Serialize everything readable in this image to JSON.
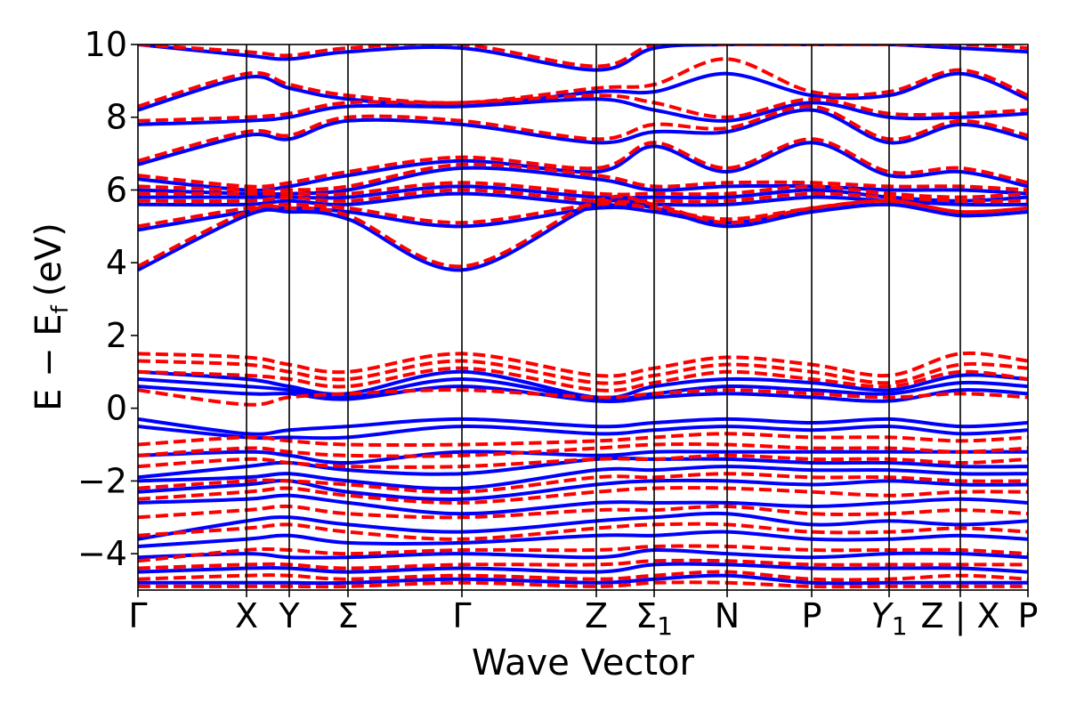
{
  "chart_data": {
    "type": "line",
    "xlabel": "Wave Vector",
    "ylabel": "E − E",
    "ylabel_sub": "f",
    "ylabel_unit": "(eV)",
    "ylim": [
      -5,
      10
    ],
    "yticks": [
      {
        "value": 10,
        "label": "10"
      },
      {
        "value": 8,
        "label": "8"
      },
      {
        "value": 6,
        "label": "6"
      },
      {
        "value": 4,
        "label": "4"
      },
      {
        "value": 2,
        "label": "2"
      },
      {
        "value": 0,
        "label": "0"
      },
      {
        "value": -2,
        "label": "−2"
      },
      {
        "value": -4,
        "label": "−4"
      }
    ],
    "grid": false,
    "legend": "none",
    "kpath": [
      {
        "x": 0.0,
        "label": "Γ",
        "sub": ""
      },
      {
        "x": 0.122,
        "label": "X",
        "sub": ""
      },
      {
        "x": 0.17,
        "label": "Y",
        "sub": ""
      },
      {
        "x": 0.236,
        "label": "Σ",
        "sub": ""
      },
      {
        "x": 0.364,
        "label": "Γ",
        "sub": ""
      },
      {
        "x": 0.515,
        "label": "Z",
        "sub": ""
      },
      {
        "x": 0.58,
        "label": "Σ",
        "sub": "1"
      },
      {
        "x": 0.662,
        "label": "N",
        "sub": ""
      },
      {
        "x": 0.757,
        "label": "P",
        "sub": ""
      },
      {
        "x": 0.844,
        "label": "Y",
        "sub": "1",
        "italic": true
      },
      {
        "x": 0.924,
        "label": "Z | X",
        "sub": ""
      },
      {
        "x": 1.0,
        "label": "P",
        "sub": ""
      }
    ],
    "series": [
      {
        "style": "solid",
        "color": "#0000ff",
        "bands": [
          [
            10.0,
            9.7,
            9.6,
            9.8,
            9.9,
            9.3,
            9.9,
            10.0,
            10.0,
            10.0,
            9.9,
            9.8
          ],
          [
            8.2,
            9.1,
            8.8,
            8.5,
            8.3,
            8.7,
            8.7,
            9.2,
            8.6,
            8.6,
            9.2,
            8.5
          ],
          [
            7.8,
            7.9,
            8.0,
            8.3,
            8.3,
            8.5,
            8.2,
            7.9,
            8.4,
            8.0,
            8.0,
            8.1
          ],
          [
            6.7,
            7.5,
            7.4,
            7.9,
            7.8,
            7.3,
            7.6,
            7.6,
            8.2,
            7.3,
            7.8,
            7.4
          ],
          [
            6.3,
            6.0,
            6.1,
            6.4,
            6.8,
            6.5,
            7.2,
            6.5,
            7.3,
            6.4,
            6.5,
            6.1
          ],
          [
            6.0,
            5.9,
            5.9,
            6.0,
            6.6,
            6.3,
            6.0,
            6.1,
            6.1,
            6.0,
            6.0,
            5.9
          ],
          [
            5.8,
            5.8,
            5.8,
            5.8,
            6.1,
            5.8,
            5.8,
            5.8,
            6.0,
            5.8,
            5.7,
            5.8
          ],
          [
            5.6,
            5.6,
            5.7,
            5.6,
            5.9,
            5.6,
            5.6,
            5.6,
            5.8,
            5.7,
            5.6,
            5.6
          ],
          [
            4.9,
            5.4,
            5.5,
            5.4,
            5.0,
            5.5,
            5.4,
            5.1,
            5.4,
            5.6,
            5.3,
            5.4
          ],
          [
            3.8,
            5.3,
            5.4,
            5.2,
            3.8,
            5.6,
            5.5,
            5.0,
            5.4,
            5.6,
            5.3,
            5.4
          ],
          [
            1.0,
            0.8,
            0.6,
            0.4,
            1.0,
            0.3,
            0.6,
            0.8,
            0.7,
            0.5,
            0.9,
            0.8
          ],
          [
            0.8,
            0.6,
            0.5,
            0.3,
            0.8,
            0.25,
            0.4,
            0.6,
            0.5,
            0.4,
            0.7,
            0.6
          ],
          [
            0.6,
            0.4,
            0.4,
            0.25,
            0.6,
            0.2,
            0.3,
            0.4,
            0.3,
            0.2,
            0.5,
            0.4
          ],
          [
            -0.3,
            -0.7,
            -0.6,
            -0.5,
            -0.3,
            -0.5,
            -0.4,
            -0.3,
            -0.4,
            -0.3,
            -0.5,
            -0.4
          ],
          [
            -0.5,
            -0.8,
            -0.8,
            -0.8,
            -0.5,
            -0.7,
            -0.6,
            -0.5,
            -0.6,
            -0.5,
            -0.7,
            -0.6
          ],
          [
            -1.3,
            -1.2,
            -1.3,
            -1.5,
            -1.2,
            -1.3,
            -1.2,
            -1.2,
            -1.2,
            -1.2,
            -1.2,
            -1.2
          ],
          [
            -1.9,
            -1.6,
            -1.5,
            -1.7,
            -1.8,
            -1.4,
            -1.4,
            -1.4,
            -1.5,
            -1.5,
            -1.6,
            -1.6
          ],
          [
            -2.0,
            -1.9,
            -1.8,
            -2.0,
            -2.2,
            -1.7,
            -1.7,
            -1.6,
            -1.7,
            -1.7,
            -1.8,
            -1.8
          ],
          [
            -2.3,
            -2.1,
            -2.0,
            -2.3,
            -2.5,
            -2.1,
            -2.0,
            -2.0,
            -2.1,
            -2.0,
            -2.1,
            -2.1
          ],
          [
            -2.6,
            -2.5,
            -2.4,
            -2.6,
            -2.9,
            -2.6,
            -2.6,
            -2.6,
            -2.7,
            -2.6,
            -2.5,
            -2.6
          ],
          [
            -3.6,
            -3.1,
            -3.0,
            -3.2,
            -3.4,
            -3.1,
            -3.0,
            -2.9,
            -3.2,
            -3.1,
            -3.2,
            -3.1
          ],
          [
            -3.8,
            -3.6,
            -3.5,
            -3.7,
            -3.7,
            -3.5,
            -3.5,
            -3.4,
            -3.6,
            -3.6,
            -3.5,
            -3.6
          ],
          [
            -4.1,
            -4.0,
            -4.1,
            -4.1,
            -4.0,
            -4.1,
            -3.9,
            -4.0,
            -4.1,
            -4.0,
            -4.0,
            -4.1
          ],
          [
            -4.5,
            -4.4,
            -4.4,
            -4.5,
            -4.4,
            -4.5,
            -4.3,
            -4.3,
            -4.4,
            -4.4,
            -4.4,
            -4.5
          ],
          [
            -4.8,
            -4.8,
            -4.8,
            -4.8,
            -4.7,
            -4.8,
            -4.7,
            -4.6,
            -4.8,
            -4.8,
            -4.8,
            -4.8
          ]
        ]
      },
      {
        "style": "dashed",
        "color": "#ff0000",
        "bands": [
          [
            10.0,
            9.8,
            9.7,
            9.9,
            10.0,
            9.4,
            10.0,
            10.0,
            10.0,
            10.0,
            10.0,
            9.9
          ],
          [
            8.3,
            9.2,
            8.9,
            8.6,
            8.4,
            8.8,
            8.9,
            9.6,
            8.7,
            8.7,
            9.3,
            8.6
          ],
          [
            7.9,
            8.0,
            8.1,
            8.4,
            8.4,
            8.6,
            8.4,
            8.0,
            8.5,
            8.1,
            8.1,
            8.2
          ],
          [
            6.8,
            7.6,
            7.5,
            8.0,
            7.9,
            7.4,
            7.8,
            7.7,
            8.3,
            7.4,
            7.9,
            7.5
          ],
          [
            6.4,
            6.1,
            6.2,
            6.5,
            6.9,
            6.6,
            7.3,
            6.6,
            7.4,
            6.5,
            6.6,
            6.2
          ],
          [
            6.1,
            6.0,
            6.0,
            6.1,
            6.7,
            6.4,
            6.1,
            6.2,
            6.2,
            6.1,
            6.1,
            6.0
          ],
          [
            5.9,
            5.9,
            5.9,
            5.9,
            6.2,
            5.9,
            5.9,
            5.9,
            6.1,
            5.9,
            5.8,
            5.9
          ],
          [
            5.7,
            5.7,
            5.8,
            5.7,
            6.0,
            5.7,
            5.7,
            5.7,
            5.9,
            5.8,
            5.7,
            5.7
          ],
          [
            5.0,
            5.5,
            5.6,
            5.5,
            5.1,
            5.6,
            5.5,
            5.2,
            5.5,
            5.7,
            5.4,
            5.5
          ],
          [
            3.9,
            5.4,
            5.5,
            5.3,
            3.9,
            5.7,
            5.6,
            5.1,
            5.5,
            5.7,
            5.4,
            5.5
          ],
          [
            1.5,
            1.4,
            1.2,
            1.0,
            1.5,
            0.9,
            1.1,
            1.4,
            1.2,
            0.9,
            1.5,
            1.3
          ],
          [
            1.3,
            1.2,
            1.0,
            0.8,
            1.3,
            0.7,
            0.9,
            1.2,
            1.0,
            0.7,
            1.2,
            1.1
          ],
          [
            1.0,
            0.9,
            0.8,
            0.6,
            1.1,
            0.5,
            0.7,
            1.0,
            0.8,
            0.6,
            1.0,
            0.8
          ],
          [
            0.5,
            0.1,
            0.3,
            0.4,
            0.5,
            0.3,
            0.4,
            0.5,
            0.4,
            0.3,
            0.4,
            0.3
          ],
          [
            -1.0,
            -0.8,
            -0.9,
            -1.0,
            -1.0,
            -0.9,
            -0.8,
            -0.7,
            -0.8,
            -0.8,
            -0.9,
            -0.8
          ],
          [
            -1.3,
            -1.1,
            -1.2,
            -1.3,
            -1.3,
            -1.1,
            -1.0,
            -1.0,
            -1.1,
            -1.1,
            -1.2,
            -1.1
          ],
          [
            -1.6,
            -1.4,
            -1.5,
            -1.6,
            -1.6,
            -1.4,
            -1.4,
            -1.3,
            -1.4,
            -1.4,
            -1.5,
            -1.4
          ],
          [
            -2.2,
            -2.0,
            -2.0,
            -2.1,
            -2.3,
            -1.9,
            -1.9,
            -1.8,
            -1.9,
            -1.9,
            -2.0,
            -2.0
          ],
          [
            -2.5,
            -2.3,
            -2.2,
            -2.4,
            -2.6,
            -2.3,
            -2.2,
            -2.2,
            -2.3,
            -2.4,
            -2.3,
            -2.3
          ],
          [
            -3.0,
            -2.8,
            -2.7,
            -2.9,
            -3.0,
            -2.8,
            -2.8,
            -2.7,
            -2.9,
            -2.9,
            -2.8,
            -2.9
          ],
          [
            -3.5,
            -3.3,
            -3.2,
            -3.4,
            -3.6,
            -3.3,
            -3.2,
            -3.2,
            -3.4,
            -3.4,
            -3.3,
            -3.4
          ],
          [
            -4.2,
            -3.9,
            -3.9,
            -4.0,
            -3.9,
            -3.9,
            -3.8,
            -3.8,
            -3.9,
            -3.9,
            -3.9,
            -4.0
          ],
          [
            -4.4,
            -4.3,
            -4.3,
            -4.4,
            -4.3,
            -4.3,
            -4.2,
            -4.2,
            -4.3,
            -4.3,
            -4.3,
            -4.3
          ],
          [
            -4.7,
            -4.6,
            -4.6,
            -4.7,
            -4.6,
            -4.7,
            -4.6,
            -4.5,
            -4.7,
            -4.7,
            -4.6,
            -4.7
          ],
          [
            -4.9,
            -4.9,
            -4.9,
            -4.9,
            -4.8,
            -4.9,
            -4.8,
            -4.8,
            -4.9,
            -4.9,
            -4.9,
            -4.9
          ]
        ]
      }
    ]
  }
}
